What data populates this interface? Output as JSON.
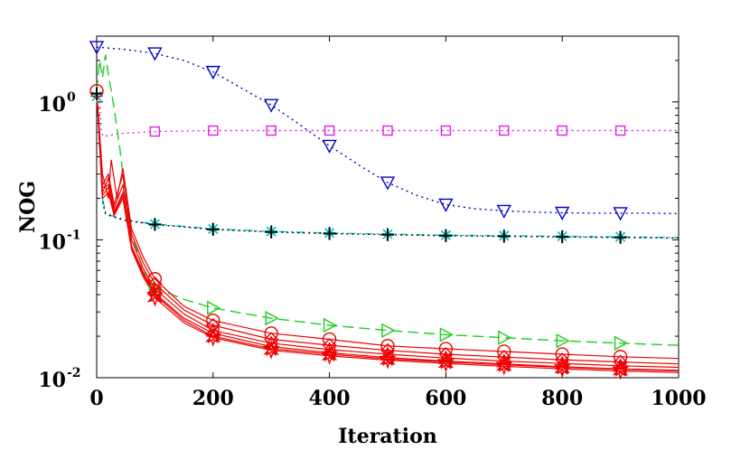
{
  "chart_data": {
    "type": "line",
    "xlabel": "Iteration",
    "ylabel": "NOG",
    "yscale": "log",
    "xlim": [
      0,
      1000
    ],
    "ylim": [
      0.01,
      3
    ],
    "x_ticks": [
      0,
      200,
      400,
      600,
      800,
      1000
    ],
    "x_tick_labels": [
      "0",
      "200",
      "400",
      "600",
      "800",
      "1000"
    ],
    "y_ticks": [
      0.01,
      0.1,
      1
    ],
    "y_tick_labels": [
      {
        "base": "10",
        "exp": "-2"
      },
      {
        "base": "10",
        "exp": "-1"
      },
      {
        "base": "10",
        "exp": "0"
      }
    ],
    "series": [
      {
        "name": "blue-triangle-down",
        "color": "#0000cc",
        "dash": "dotted",
        "marker": "triangle-down",
        "x": [
          0,
          50,
          100,
          150,
          200,
          250,
          300,
          350,
          400,
          450,
          500,
          550,
          600,
          650,
          700,
          750,
          800,
          850,
          900,
          950,
          1000
        ],
        "y": [
          2.5,
          2.4,
          2.25,
          2.0,
          1.65,
          1.25,
          0.95,
          0.68,
          0.48,
          0.35,
          0.26,
          0.21,
          0.18,
          0.168,
          0.162,
          0.159,
          0.157,
          0.156,
          0.156,
          0.156,
          0.155
        ],
        "marker_x": [
          0,
          100,
          200,
          300,
          400,
          500,
          600,
          700,
          800,
          900
        ]
      },
      {
        "name": "magenta-square",
        "color": "#e020e0",
        "dash": "dotted",
        "marker": "square",
        "x": [
          0,
          5,
          8,
          12,
          20,
          40,
          70,
          100,
          150,
          200,
          300,
          400,
          500,
          600,
          700,
          800,
          900,
          1000
        ],
        "y": [
          1.2,
          1.0,
          0.6,
          0.56,
          0.57,
          0.59,
          0.6,
          0.61,
          0.615,
          0.62,
          0.62,
          0.62,
          0.62,
          0.62,
          0.62,
          0.62,
          0.62,
          0.62
        ],
        "marker_x": [
          100,
          200,
          300,
          400,
          500,
          600,
          700,
          800,
          900
        ]
      },
      {
        "name": "cyan-asterisk",
        "color": "#00c8c8",
        "dash": "dashdot",
        "marker": "asterisk",
        "x": [
          0,
          5,
          10,
          15,
          25,
          50,
          100,
          150,
          200,
          300,
          400,
          500,
          600,
          700,
          800,
          900,
          1000
        ],
        "y": [
          1.1,
          0.6,
          0.2,
          0.16,
          0.15,
          0.14,
          0.13,
          0.125,
          0.12,
          0.115,
          0.112,
          0.11,
          0.108,
          0.107,
          0.106,
          0.105,
          0.104
        ],
        "marker_x": [
          0,
          100,
          200,
          300,
          400,
          500,
          600,
          700,
          800,
          900
        ]
      },
      {
        "name": "black-plus",
        "color": "#000000",
        "dash": "dotted",
        "marker": "plus",
        "x": [
          0,
          5,
          10,
          15,
          25,
          50,
          100,
          150,
          200,
          300,
          400,
          500,
          600,
          700,
          800,
          900,
          1000
        ],
        "y": [
          1.15,
          0.55,
          0.19,
          0.155,
          0.148,
          0.138,
          0.129,
          0.124,
          0.119,
          0.114,
          0.111,
          0.109,
          0.107,
          0.106,
          0.105,
          0.104,
          0.103
        ],
        "marker_x": [
          0,
          100,
          200,
          300,
          400,
          500,
          600,
          700,
          800,
          900
        ]
      },
      {
        "name": "green-triangle-right",
        "color": "#22cc22",
        "dash": "dashed",
        "marker": "triangle-right",
        "x": [
          0,
          5,
          10,
          15,
          20,
          30,
          40,
          50,
          60,
          80,
          100,
          150,
          200,
          300,
          400,
          500,
          600,
          700,
          800,
          900,
          1000
        ],
        "y": [
          1.2,
          2.0,
          1.5,
          2.2,
          1.6,
          0.9,
          0.45,
          0.2,
          0.11,
          0.06,
          0.045,
          0.037,
          0.032,
          0.027,
          0.024,
          0.022,
          0.0205,
          0.0195,
          0.0185,
          0.0178,
          0.0172
        ],
        "marker_x": [
          100,
          200,
          300,
          400,
          500,
          600,
          700,
          800,
          900
        ]
      },
      {
        "name": "red-circle",
        "color": "#ee0000",
        "dash": "solid",
        "marker": "circle",
        "x": [
          0,
          10,
          20,
          25,
          35,
          45,
          60,
          80,
          100,
          150,
          200,
          300,
          400,
          500,
          600,
          700,
          800,
          900,
          1000
        ],
        "y": [
          1.2,
          0.3,
          0.2,
          0.38,
          0.2,
          0.33,
          0.12,
          0.075,
          0.052,
          0.033,
          0.026,
          0.021,
          0.019,
          0.017,
          0.0162,
          0.0155,
          0.0148,
          0.0142,
          0.0138
        ],
        "marker_x": [
          0,
          100,
          200,
          300,
          400,
          500,
          600,
          700,
          800,
          900
        ]
      },
      {
        "name": "red-diamond",
        "color": "#ee0000",
        "dash": "solid",
        "marker": "diamond",
        "x": [
          0,
          10,
          20,
          30,
          45,
          60,
          80,
          100,
          150,
          200,
          300,
          400,
          500,
          600,
          700,
          800,
          900,
          1000
        ],
        "y": [
          1.2,
          0.25,
          0.3,
          0.18,
          0.3,
          0.11,
          0.068,
          0.048,
          0.031,
          0.024,
          0.019,
          0.0172,
          0.0158,
          0.0148,
          0.0141,
          0.0135,
          0.013,
          0.0126
        ],
        "marker_x": [
          100,
          200,
          300,
          400,
          500,
          600,
          700,
          800,
          900
        ]
      },
      {
        "name": "red-triangle-up",
        "color": "#ee0000",
        "dash": "solid",
        "marker": "triangle-up",
        "x": [
          0,
          10,
          20,
          30,
          45,
          60,
          80,
          100,
          150,
          200,
          300,
          400,
          500,
          600,
          700,
          800,
          900,
          1000
        ],
        "y": [
          1.2,
          0.22,
          0.28,
          0.17,
          0.25,
          0.1,
          0.062,
          0.044,
          0.029,
          0.022,
          0.0178,
          0.016,
          0.0148,
          0.0139,
          0.0132,
          0.0127,
          0.0122,
          0.0119
        ],
        "marker_x": [
          100,
          200,
          300,
          400,
          500,
          600,
          700,
          800,
          900
        ]
      },
      {
        "name": "red-triangle-left",
        "color": "#ee0000",
        "dash": "solid",
        "marker": "triangle-left",
        "x": [
          0,
          10,
          20,
          30,
          45,
          60,
          80,
          100,
          150,
          200,
          300,
          400,
          500,
          600,
          700,
          800,
          900,
          1000
        ],
        "y": [
          1.2,
          0.24,
          0.25,
          0.16,
          0.22,
          0.09,
          0.058,
          0.041,
          0.027,
          0.021,
          0.0168,
          0.0152,
          0.014,
          0.0132,
          0.0126,
          0.012,
          0.0116,
          0.0113
        ],
        "marker_x": [
          100,
          200,
          300,
          400,
          500,
          600,
          700,
          800,
          900
        ]
      },
      {
        "name": "red-star",
        "color": "#ee0000",
        "dash": "solid",
        "marker": "star",
        "x": [
          0,
          10,
          20,
          30,
          45,
          60,
          80,
          100,
          150,
          200,
          300,
          400,
          500,
          600,
          700,
          800,
          900,
          1000
        ],
        "y": [
          1.2,
          0.2,
          0.22,
          0.15,
          0.2,
          0.085,
          0.054,
          0.038,
          0.025,
          0.0195,
          0.0158,
          0.0144,
          0.0134,
          0.0127,
          0.0121,
          0.0116,
          0.0112,
          0.0109
        ],
        "marker_x": [
          100,
          200,
          300,
          400,
          500,
          600,
          700,
          800,
          900
        ]
      },
      {
        "name": "red-pentagram",
        "color": "#ee0000",
        "dash": "solid",
        "marker": "pentagram",
        "x": [
          0,
          10,
          20,
          30,
          45,
          60,
          80,
          100,
          150,
          200,
          300,
          400,
          500,
          600,
          700,
          800,
          900,
          1000
        ],
        "y": [
          1.2,
          0.21,
          0.24,
          0.155,
          0.21,
          0.088,
          0.056,
          0.04,
          0.026,
          0.02,
          0.0162,
          0.0148,
          0.0137,
          0.013,
          0.0124,
          0.0119,
          0.0115,
          0.0112
        ],
        "marker_x": [
          100,
          200,
          300,
          400,
          500,
          600,
          700,
          800,
          900
        ]
      }
    ]
  }
}
